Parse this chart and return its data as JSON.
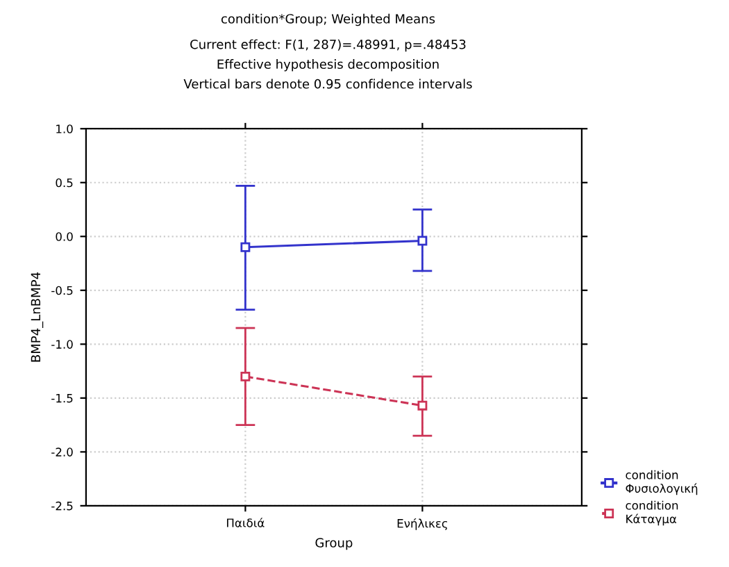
{
  "chart_data": {
    "type": "line",
    "title": "condition*Group; Weighted Means",
    "subtitle": "Current effect: F(1, 287)=.48991, p=.48453\nEffective hypothesis decomposition\nVertical bars denote 0.95 confidence intervals",
    "xlabel": "Group",
    "ylabel": "BMP4_LnBMP4",
    "categories": [
      "Παιδιά",
      "Ενήλικες"
    ],
    "series": [
      {
        "name": "condition\nΦυσιολογική",
        "color": "#3333cc",
        "values": [
          -0.1,
          -0.04
        ],
        "errors": [
          [
            -0.68,
            0.47
          ],
          [
            -0.32,
            0.25
          ]
        ],
        "line_style": "solid"
      },
      {
        "name": "condition\nΚάταγμα",
        "color": "#cc3355",
        "values": [
          -1.3,
          -1.57
        ],
        "errors": [
          [
            -1.75,
            -0.85
          ],
          [
            -1.85,
            -1.3
          ]
        ],
        "line_style": "dashed"
      }
    ],
    "ylim": [
      -2.5,
      1.0
    ],
    "yticks": [
      {
        "value": 1.0,
        "label": "1.0"
      },
      {
        "value": 0.5,
        "label": "0.5"
      },
      {
        "value": 0.0,
        "label": "0.0"
      },
      {
        "value": -0.5,
        "label": "-0.5"
      },
      {
        "value": -1.0,
        "label": "-1.0"
      },
      {
        "value": -1.5,
        "label": "-1.5"
      },
      {
        "value": -2.0,
        "label": "-2.0"
      },
      {
        "value": -2.5,
        "label": "-2.5"
      }
    ],
    "grid": true,
    "legend": "bottom right",
    "marker": "square"
  }
}
